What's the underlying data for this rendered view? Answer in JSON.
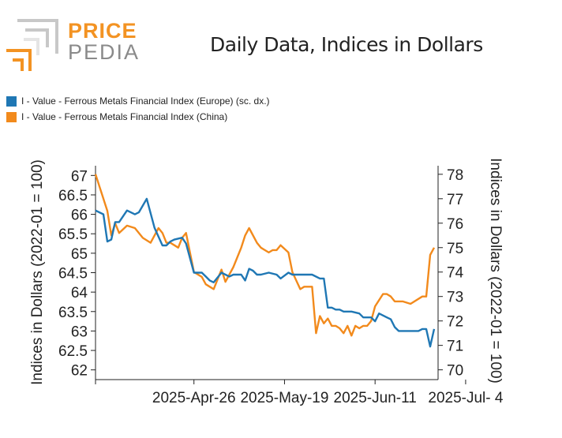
{
  "logo": {
    "top": "PRICE",
    "bottom": "PEDIA",
    "top_color": "#f39323",
    "bottom_color": "#8a8a8a"
  },
  "chart_data": {
    "type": "line",
    "title": "Daily Data, Indices in Dollars",
    "ylabel_left": "Indices in Dollars (2022-01 = 100)",
    "ylabel_right": "Indices in Dollars (2022-01 = 100)",
    "x_tick_labels": [
      "2025-Apr-26",
      "2025-May-19",
      "2025-Jun-11",
      "2025-Jul- 4"
    ],
    "x_ticks": [
      0,
      23,
      46,
      69
    ],
    "x_range": [
      -25,
      62
    ],
    "ylim_left": [
      61.75,
      67.25
    ],
    "yticks_left": [
      62,
      62.5,
      63,
      63.5,
      64,
      64.5,
      65,
      65.5,
      66,
      66.5,
      67
    ],
    "ylim_right": [
      69.6,
      78.35
    ],
    "yticks_right": [
      70,
      71,
      72,
      73,
      74,
      75,
      76,
      77,
      78
    ],
    "series": [
      {
        "name": "I - Value - Ferrous Metals Financial Index (Europe) (sc. dx.)",
        "color": "#1f77b4",
        "axis": "left",
        "x": [
          -25,
          -23,
          -22,
          -21,
          -20,
          -19,
          -17,
          -15,
          -14,
          -12,
          -10,
          -8,
          -7,
          -6,
          -5,
          -3,
          -2,
          0,
          2,
          3,
          4,
          5,
          7,
          9,
          10,
          12,
          13,
          14,
          15,
          16,
          17,
          19,
          21,
          22,
          24,
          25,
          26,
          28,
          30,
          32,
          33,
          34,
          35,
          36,
          37,
          38,
          40,
          42,
          43,
          44,
          45,
          46,
          47,
          49,
          50,
          51,
          52,
          53,
          54,
          57,
          58,
          59,
          60,
          61
        ],
        "values": [
          66.1,
          66.0,
          65.3,
          65.35,
          65.8,
          65.8,
          66.1,
          66.0,
          66.05,
          66.4,
          65.65,
          65.2,
          65.2,
          65.3,
          65.35,
          65.4,
          65.25,
          64.5,
          64.5,
          64.4,
          64.3,
          64.25,
          64.5,
          64.4,
          64.45,
          64.45,
          64.3,
          64.6,
          64.55,
          64.45,
          64.45,
          64.5,
          64.45,
          64.35,
          64.5,
          64.45,
          64.45,
          64.45,
          64.45,
          64.35,
          64.35,
          63.6,
          63.6,
          63.55,
          63.55,
          63.5,
          63.5,
          63.45,
          63.35,
          63.35,
          63.35,
          63.25,
          63.45,
          63.35,
          63.3,
          63.1,
          63.0,
          63.0,
          63.0,
          63.0,
          63.05,
          63.05,
          62.6,
          63.05
        ]
      },
      {
        "name": "I - Value - Ferrous Metals Financial Index (China)",
        "color": "#f28a1c",
        "axis": "right",
        "x": [
          -25,
          -23,
          -22,
          -21,
          -20,
          -19,
          -17,
          -15,
          -13,
          -11,
          -9,
          -8,
          -7,
          -6,
          -5,
          -4,
          -3,
          -2,
          0,
          2,
          3,
          4,
          5,
          7,
          8,
          10,
          12,
          13,
          14,
          16,
          17,
          18,
          19,
          20,
          21,
          22,
          24,
          25,
          27,
          28,
          30,
          31,
          32,
          33,
          34,
          35,
          36,
          37,
          38,
          39,
          40,
          41,
          42,
          43,
          44,
          45,
          46,
          48,
          49,
          50,
          51,
          53,
          55,
          58,
          59,
          60,
          61
        ],
        "values": [
          78.0,
          77.0,
          76.5,
          75.5,
          76.0,
          75.6,
          75.9,
          75.8,
          75.4,
          75.2,
          75.8,
          75.6,
          75.2,
          75.2,
          75.1,
          75.0,
          75.4,
          75.6,
          74.0,
          73.8,
          73.5,
          73.4,
          73.3,
          74.1,
          73.6,
          74.2,
          75.0,
          75.5,
          75.8,
          75.2,
          75.0,
          74.9,
          74.8,
          74.9,
          74.9,
          75.1,
          74.8,
          74.0,
          73.3,
          73.4,
          73.4,
          71.5,
          72.2,
          71.9,
          72.1,
          71.8,
          71.8,
          71.7,
          71.5,
          71.8,
          71.4,
          71.8,
          71.7,
          71.8,
          71.8,
          72.0,
          72.6,
          73.1,
          73.1,
          73.0,
          72.8,
          72.8,
          72.7,
          73.0,
          73.0,
          74.7,
          75.0
        ]
      }
    ]
  }
}
